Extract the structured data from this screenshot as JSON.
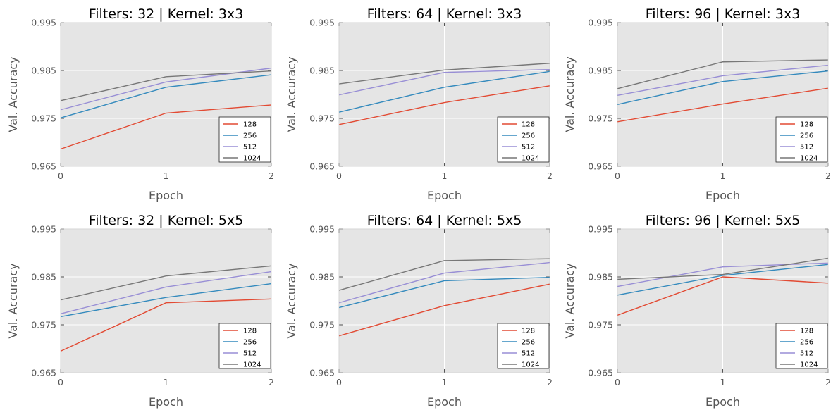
{
  "colors": {
    "axes_bg": "#e5e5e5",
    "grid": "#ffffff",
    "tick": "#555555",
    "series": [
      "#e24a33",
      "#348abd",
      "#988ed5",
      "#777777"
    ]
  },
  "chart_data": [
    {
      "type": "line",
      "title": "Filters: 32 | Kernel: 3x3",
      "xlabel": "Epoch",
      "ylabel": "Val. Accuracy",
      "x": [
        0,
        1,
        2
      ],
      "xticks": [
        "0",
        "1",
        "2"
      ],
      "ylim": [
        0.965,
        0.995
      ],
      "yticks": [
        "0.965",
        "0.975",
        "0.985",
        "0.995"
      ],
      "grid": true,
      "legend": "lower-right",
      "series": [
        {
          "name": "128",
          "values": [
            0.9686,
            0.9761,
            0.9778
          ]
        },
        {
          "name": "256",
          "values": [
            0.9751,
            0.9815,
            0.9841
          ]
        },
        {
          "name": "512",
          "values": [
            0.9768,
            0.9826,
            0.9855
          ]
        },
        {
          "name": "1024",
          "values": [
            0.9787,
            0.9837,
            0.9849
          ]
        }
      ]
    },
    {
      "type": "line",
      "title": "Filters: 64 | Kernel: 3x3",
      "xlabel": "Epoch",
      "ylabel": "Val. Accuracy",
      "x": [
        0,
        1,
        2
      ],
      "xticks": [
        "0",
        "1",
        "2"
      ],
      "ylim": [
        0.965,
        0.995
      ],
      "yticks": [
        "0.965",
        "0.975",
        "0.985",
        "0.995"
      ],
      "grid": true,
      "legend": "lower-right",
      "series": [
        {
          "name": "128",
          "values": [
            0.9737,
            0.9783,
            0.9818
          ]
        },
        {
          "name": "256",
          "values": [
            0.9763,
            0.9815,
            0.9848
          ]
        },
        {
          "name": "512",
          "values": [
            0.9799,
            0.9846,
            0.9852
          ]
        },
        {
          "name": "1024",
          "values": [
            0.9822,
            0.9851,
            0.9865
          ]
        }
      ]
    },
    {
      "type": "line",
      "title": "Filters: 96 | Kernel: 3x3",
      "xlabel": "Epoch",
      "ylabel": "Val. Accuracy",
      "x": [
        0,
        1,
        2
      ],
      "xticks": [
        "0",
        "1",
        "2"
      ],
      "ylim": [
        0.965,
        0.995
      ],
      "yticks": [
        "0.965",
        "0.975",
        "0.985",
        "0.995"
      ],
      "grid": true,
      "legend": "lower-right",
      "series": [
        {
          "name": "128",
          "values": [
            0.9743,
            0.978,
            0.9813
          ]
        },
        {
          "name": "256",
          "values": [
            0.9779,
            0.9827,
            0.9849
          ]
        },
        {
          "name": "512",
          "values": [
            0.9798,
            0.9839,
            0.9861
          ]
        },
        {
          "name": "1024",
          "values": [
            0.9812,
            0.9868,
            0.9872
          ]
        }
      ]
    },
    {
      "type": "line",
      "title": "Filters: 32 | Kernel: 5x5",
      "xlabel": "Epoch",
      "ylabel": "Val. Accuracy",
      "x": [
        0,
        1,
        2
      ],
      "xticks": [
        "0",
        "1",
        "2"
      ],
      "ylim": [
        0.965,
        0.995
      ],
      "yticks": [
        "0.965",
        "0.975",
        "0.985",
        "0.995"
      ],
      "grid": true,
      "legend": "lower-right",
      "series": [
        {
          "name": "128",
          "values": [
            0.9695,
            0.9796,
            0.9804
          ]
        },
        {
          "name": "256",
          "values": [
            0.9767,
            0.9807,
            0.9836
          ]
        },
        {
          "name": "512",
          "values": [
            0.9773,
            0.9829,
            0.9861
          ]
        },
        {
          "name": "1024",
          "values": [
            0.9802,
            0.9852,
            0.9873
          ]
        }
      ]
    },
    {
      "type": "line",
      "title": "Filters: 64 | Kernel: 5x5",
      "xlabel": "Epoch",
      "ylabel": "Val. Accuracy",
      "x": [
        0,
        1,
        2
      ],
      "xticks": [
        "0",
        "1",
        "2"
      ],
      "ylim": [
        0.965,
        0.995
      ],
      "yticks": [
        "0.965",
        "0.975",
        "0.985",
        "0.995"
      ],
      "grid": true,
      "legend": "lower-right",
      "series": [
        {
          "name": "128",
          "values": [
            0.9727,
            0.979,
            0.9835
          ]
        },
        {
          "name": "256",
          "values": [
            0.9786,
            0.9842,
            0.9849
          ]
        },
        {
          "name": "512",
          "values": [
            0.9796,
            0.9858,
            0.988
          ]
        },
        {
          "name": "1024",
          "values": [
            0.9822,
            0.9884,
            0.9888
          ]
        }
      ]
    },
    {
      "type": "line",
      "title": "Filters: 96 | Kernel: 5x5",
      "xlabel": "Epoch",
      "ylabel": "Val. Accuracy",
      "x": [
        0,
        1,
        2
      ],
      "xticks": [
        "0",
        "1",
        "2"
      ],
      "ylim": [
        0.965,
        0.995
      ],
      "yticks": [
        "0.965",
        "0.975",
        "0.985",
        "0.995"
      ],
      "grid": true,
      "legend": "lower-right",
      "series": [
        {
          "name": "128",
          "values": [
            0.977,
            0.985,
            0.9837
          ]
        },
        {
          "name": "256",
          "values": [
            0.9812,
            0.9853,
            0.9876
          ]
        },
        {
          "name": "512",
          "values": [
            0.983,
            0.9871,
            0.9879
          ]
        },
        {
          "name": "1024",
          "values": [
            0.9845,
            0.9855,
            0.9889
          ]
        }
      ]
    }
  ]
}
